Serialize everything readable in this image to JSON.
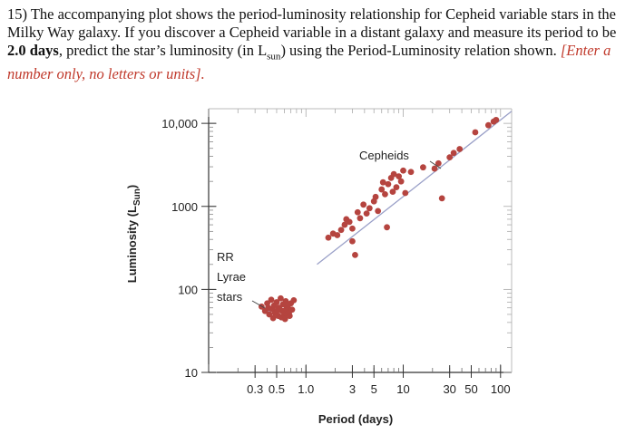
{
  "question": {
    "part1": "15) The accompanying plot shows the period-luminosity relationship for Cepheid variable stars in the Milky Way galaxy.  If you discover a Cepheid variable in a distant galaxy and measure its period to be ",
    "period_bold": "2.0 days",
    "part2": ", predict the star’s luminosity (in L",
    "lum_sub": "sun",
    "part3": ") using the Period-Luminosity relation shown.  ",
    "instruction": "[Enter a number only, no letters or units]."
  },
  "chart_data": {
    "type": "scatter",
    "xlabel": "Period (days)",
    "ylabel": "Luminosity (L",
    "ylabel_sub": "Sun",
    "ylabel_close": ")",
    "x_scale": "log",
    "y_scale": "log",
    "xlim": [
      0.1,
      130
    ],
    "ylim": [
      10,
      15000
    ],
    "x_ticks": [
      {
        "value": 0.3,
        "label": "0.3"
      },
      {
        "value": 0.5,
        "label": "0.5"
      },
      {
        "value": 1.0,
        "label": "1.0"
      },
      {
        "value": 3,
        "label": "3"
      },
      {
        "value": 5,
        "label": "5"
      },
      {
        "value": 10,
        "label": "10"
      },
      {
        "value": 30,
        "label": "30"
      },
      {
        "value": 50,
        "label": "50"
      },
      {
        "value": 100,
        "label": "100"
      }
    ],
    "y_ticks": [
      {
        "value": 10,
        "label": "10"
      },
      {
        "value": 100,
        "label": "100"
      },
      {
        "value": 1000,
        "label": "1000"
      },
      {
        "value": 10000,
        "label": "10,000"
      }
    ],
    "annotations": {
      "cepheids": "Cepheids",
      "rr_line1": "RR",
      "rr_line2": "Lyrae",
      "rr_line3": "stars"
    },
    "fit_line": [
      [
        1.3,
        200
      ],
      [
        130,
        14000
      ]
    ],
    "rr_lyrae_band": [
      [
        0.38,
        55
      ],
      [
        0.75,
        55
      ]
    ],
    "point_color": "#b5443f",
    "line_color": "#9aa0c8",
    "rr_lyrae": [
      [
        0.35,
        62
      ],
      [
        0.38,
        55
      ],
      [
        0.4,
        68
      ],
      [
        0.42,
        50
      ],
      [
        0.44,
        75
      ],
      [
        0.45,
        58
      ],
      [
        0.47,
        64
      ],
      [
        0.48,
        52
      ],
      [
        0.5,
        70
      ],
      [
        0.52,
        48
      ],
      [
        0.53,
        60
      ],
      [
        0.55,
        78
      ],
      [
        0.57,
        55
      ],
      [
        0.58,
        66
      ],
      [
        0.6,
        50
      ],
      [
        0.62,
        72
      ],
      [
        0.63,
        58
      ],
      [
        0.65,
        62
      ],
      [
        0.67,
        53
      ],
      [
        0.7,
        68
      ],
      [
        0.72,
        57
      ],
      [
        0.75,
        74
      ],
      [
        0.46,
        45
      ],
      [
        0.56,
        46
      ],
      [
        0.61,
        44
      ],
      [
        0.41,
        60
      ],
      [
        0.68,
        48
      ],
      [
        0.51,
        56
      ]
    ],
    "cepheids": [
      [
        1.7,
        420
      ],
      [
        1.9,
        470
      ],
      [
        2.1,
        450
      ],
      [
        2.3,
        520
      ],
      [
        2.5,
        600
      ],
      [
        2.8,
        650
      ],
      [
        2.6,
        700
      ],
      [
        3.0,
        540
      ],
      [
        3.0,
        380
      ],
      [
        3.2,
        260
      ],
      [
        3.4,
        850
      ],
      [
        3.6,
        720
      ],
      [
        3.9,
        1050
      ],
      [
        4.2,
        820
      ],
      [
        4.5,
        950
      ],
      [
        5.0,
        1150
      ],
      [
        5.2,
        1300
      ],
      [
        5.5,
        880
      ],
      [
        6.0,
        1600
      ],
      [
        6.2,
        1950
      ],
      [
        6.5,
        1400
      ],
      [
        7.0,
        1850
      ],
      [
        7.5,
        2200
      ],
      [
        7.8,
        1500
      ],
      [
        8.0,
        2450
      ],
      [
        8.5,
        1700
      ],
      [
        9.0,
        2300
      ],
      [
        9.5,
        2000
      ],
      [
        10.0,
        2700
      ],
      [
        10.5,
        1450
      ],
      [
        12.0,
        2600
      ],
      [
        6.8,
        560
      ],
      [
        16.0,
        2950
      ],
      [
        21.0,
        2850
      ],
      [
        23.0,
        3300
      ],
      [
        25.0,
        1250
      ],
      [
        30.0,
        3900
      ],
      [
        33.0,
        4400
      ],
      [
        38.0,
        4900
      ],
      [
        55.0,
        7800
      ],
      [
        75.0,
        9500
      ],
      [
        85.0,
        10500
      ],
      [
        90.0,
        11000
      ]
    ]
  }
}
